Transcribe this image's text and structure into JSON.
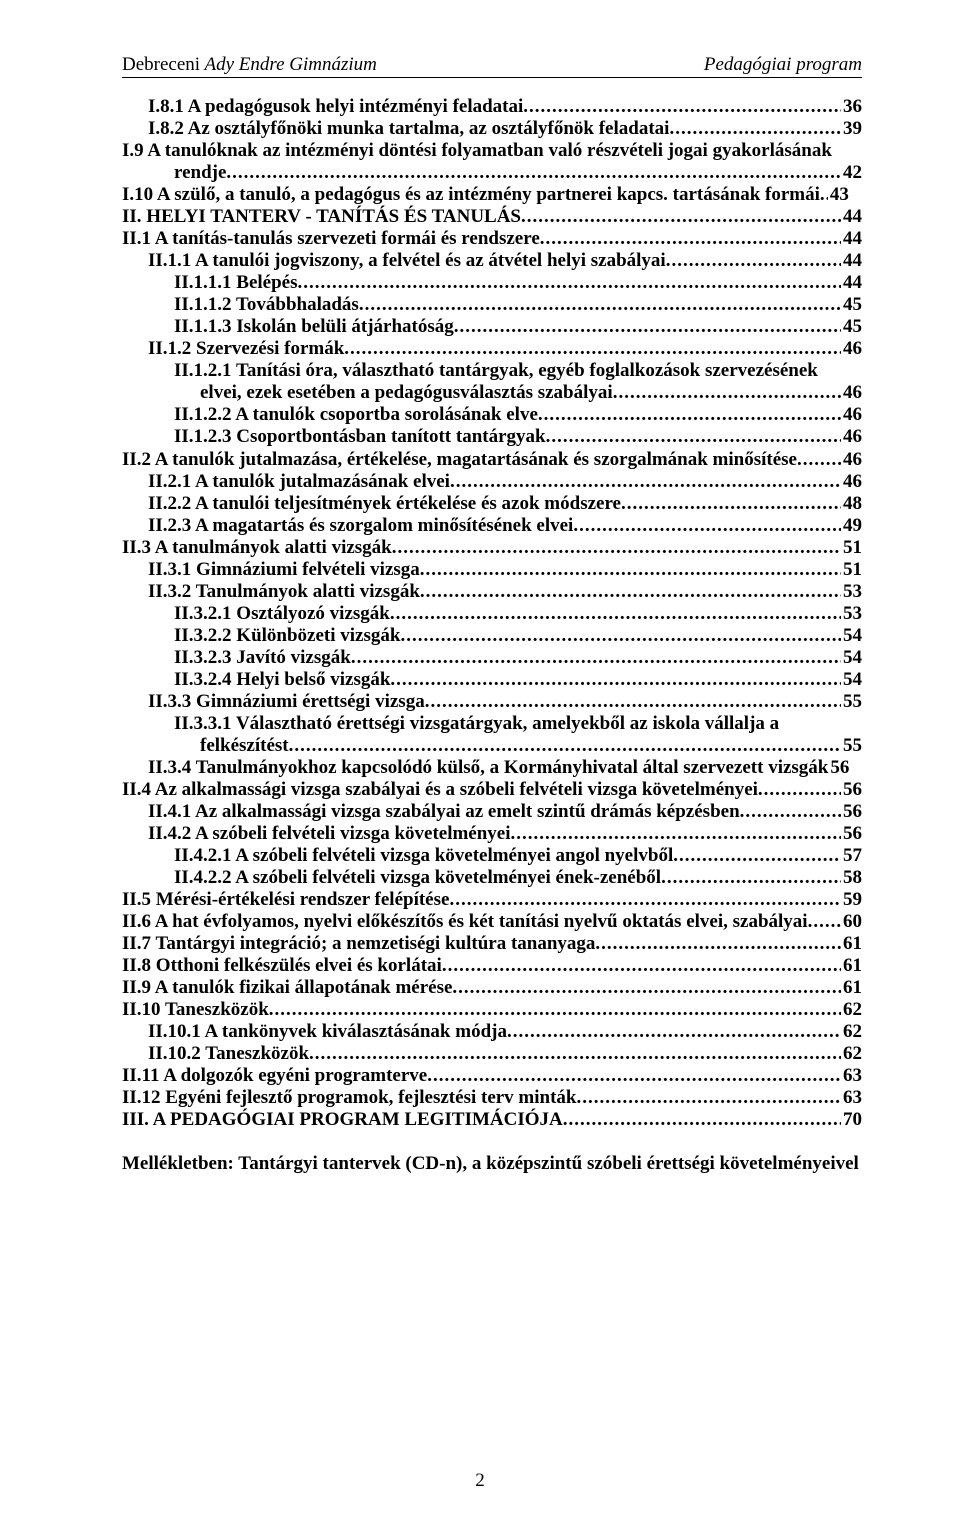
{
  "header": {
    "city": "Debreceni",
    "school": "Ady Endre Gimnázium",
    "right": "Pedagógiai program"
  },
  "toc": [
    {
      "indent": 1,
      "title": "I.8.1 A pedagógusok helyi intézményi feladatai",
      "page": "36"
    },
    {
      "indent": 1,
      "title": "I.8.2 Az osztályfőnöki munka tartalma, az osztályfőnök feladatai",
      "page": "39"
    },
    {
      "indent": 0,
      "title": "I.9 A tanulóknak az intézményi döntési folyamatban való részvételi jogai gyakorlásának",
      "wrap": true
    },
    {
      "indent": 0,
      "cont": true,
      "title": "rendje",
      "page": "42"
    },
    {
      "indent": 0,
      "title": "I.10 A szülő, a tanuló, a pedagógus és az intézmény partnerei kapcs. tartásának formái",
      "page": "43",
      "tight": true
    },
    {
      "indent": 0,
      "title": "II. HELYI TANTERV - TANÍTÁS ÉS TANULÁS",
      "page": "44"
    },
    {
      "indent": 0,
      "title": "II.1 A tanítás-tanulás szervezeti formái és rendszere",
      "page": "44"
    },
    {
      "indent": 1,
      "title": "II.1.1 A tanulói jogviszony, a felvétel és az átvétel helyi szabályai",
      "page": "44"
    },
    {
      "indent": 2,
      "title": "II.1.1.1 Belépés",
      "page": "44"
    },
    {
      "indent": 2,
      "title": "II.1.1.2 Továbbhaladás",
      "page": "45"
    },
    {
      "indent": 2,
      "title": "II.1.1.3 Iskolán belüli átjárhatóság",
      "page": "45"
    },
    {
      "indent": 1,
      "title": "II.1.2 Szervezési formák",
      "page": "46"
    },
    {
      "indent": 2,
      "title": "II.1.2.1 Tanítási óra, választható tantárgyak, egyéb foglalkozások szervezésének",
      "wrap": true
    },
    {
      "indent": 2,
      "cont": true,
      "title": "elvei, ezek esetében a pedagógusválasztás szabályai",
      "page": "46"
    },
    {
      "indent": 2,
      "title": "II.1.2.2 A tanulók csoportba sorolásának elve",
      "page": "46"
    },
    {
      "indent": 2,
      "title": "II.1.2.3 Csoportbontásban tanított tantárgyak",
      "page": "46"
    },
    {
      "indent": 0,
      "title": "II.2 A tanulók jutalmazása, értékelése, magatartásának és szorgalmának minősítése",
      "page": "46"
    },
    {
      "indent": 1,
      "title": "II.2.1 A tanulók jutalmazásának elvei",
      "page": "46"
    },
    {
      "indent": 1,
      "title": "II.2.2 A tanulói teljesítmények értékelése és azok módszere",
      "page": "48"
    },
    {
      "indent": 1,
      "title": "II.2.3 A magatartás és szorgalom minősítésének elvei",
      "page": "49"
    },
    {
      "indent": 0,
      "title": "II.3 A tanulmányok alatti vizsgák",
      "page": "51"
    },
    {
      "indent": 1,
      "title": "II.3.1 Gimnáziumi felvételi vizsga",
      "page": "51"
    },
    {
      "indent": 1,
      "title": "II.3.2 Tanulmányok alatti vizsgák",
      "page": "53"
    },
    {
      "indent": 2,
      "title": "II.3.2.1 Osztályozó vizsgák",
      "page": "53"
    },
    {
      "indent": 2,
      "title": "II.3.2.2 Különbözeti vizsgák",
      "page": "54"
    },
    {
      "indent": 2,
      "title": "II.3.2.3 Javító vizsgák",
      "page": "54"
    },
    {
      "indent": 2,
      "title": "II.3.2.4 Helyi belső vizsgák",
      "page": "54"
    },
    {
      "indent": 1,
      "title": "II.3.3 Gimnáziumi érettségi vizsga",
      "page": "55"
    },
    {
      "indent": 2,
      "title": "II.3.3.1 Választható érettségi vizsgatárgyak, amelyekből az iskola vállalja a",
      "wrap": true
    },
    {
      "indent": 2,
      "cont": true,
      "title": "felkészítést",
      "page": "55"
    },
    {
      "indent": 1,
      "title": "II.3.4 Tanulmányokhoz kapcsolódó külső, a Kormányhivatal által szervezett vizsgák",
      "page": "56",
      "nodots": true
    },
    {
      "indent": 0,
      "title": "II.4 Az alkalmassági vizsga szabályai és a szóbeli felvételi vizsga követelményei",
      "page": "56"
    },
    {
      "indent": 1,
      "title": "II.4.1 Az alkalmassági vizsga szabályai az emelt szintű drámás képzésben",
      "page": "56"
    },
    {
      "indent": 1,
      "title": "II.4.2 A szóbeli felvételi vizsga követelményei",
      "page": "56"
    },
    {
      "indent": 2,
      "title": "II.4.2.1 A szóbeli felvételi vizsga követelményei angol nyelvből",
      "page": "57"
    },
    {
      "indent": 2,
      "title": "II.4.2.2 A szóbeli felvételi vizsga követelményei ének-zenéből",
      "page": "58"
    },
    {
      "indent": 0,
      "title": "II.5 Mérési-értékelési rendszer felépítése",
      "page": "59"
    },
    {
      "indent": 0,
      "title": "II.6 A hat évfolyamos, nyelvi előkészítős és két tanítási nyelvű oktatás elvei, szabályai",
      "page": "60"
    },
    {
      "indent": 0,
      "title": "II.7 Tantárgyi integráció; a nemzetiségi kultúra tananyaga",
      "page": "61"
    },
    {
      "indent": 0,
      "title": "II.8 Otthoni felkészülés elvei és korlátai",
      "page": "61"
    },
    {
      "indent": 0,
      "title": "II.9 A tanulók fizikai állapotának mérése",
      "page": "61"
    },
    {
      "indent": 0,
      "title": "II.10 Taneszközök",
      "page": "62"
    },
    {
      "indent": 1,
      "title": "II.10.1 A tankönyvek kiválasztásának módja",
      "page": "62"
    },
    {
      "indent": 1,
      "title": "II.10.2 Taneszközök",
      "page": "62"
    },
    {
      "indent": 0,
      "title": "II.11 A dolgozók egyéni programterve",
      "page": "63"
    },
    {
      "indent": 0,
      "title": "II.12 Egyéni fejlesztő programok, fejlesztési terv minták",
      "page": "63"
    },
    {
      "indent": 0,
      "title": "III. A PEDAGÓGIAI PROGRAM LEGITIMÁCIÓJA",
      "page": "70"
    }
  ],
  "appendix": "Mellékletben: Tantárgyi tantervek (CD-n), a középszintű szóbeli érettségi követelményeivel",
  "pagenum": "2"
}
